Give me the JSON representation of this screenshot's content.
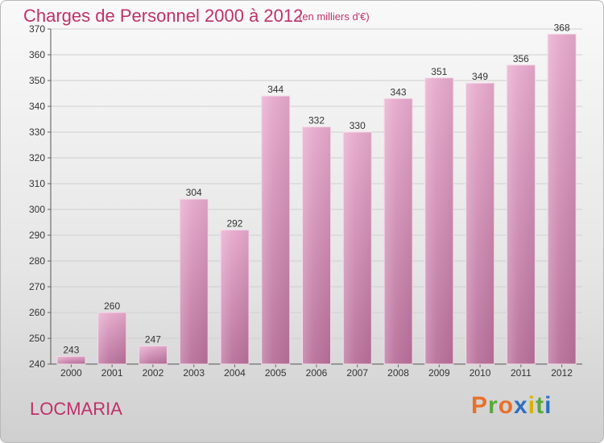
{
  "title": "Charges de Personnel 2000 à 2012",
  "subtitle": "(en milliers d'€)",
  "place": "LOCMARIA",
  "logo": {
    "text": "Proxiti",
    "colors": [
      "#e8702a",
      "#5aa83c",
      "#e8702a",
      "#2d6fc1",
      "#d9b100",
      "#5aa83c",
      "#2d6fc1"
    ]
  },
  "colors": {
    "title": "#c0306a",
    "bar_top": "#e6a9cc",
    "bar_bottom": "#b8709a",
    "grid": "#cfcfcf"
  },
  "chart_data": {
    "type": "bar",
    "title": "Charges de Personnel 2000 à 2012",
    "subtitle": "(en milliers d'€)",
    "categories": [
      "2000",
      "2001",
      "2002",
      "2003",
      "2004",
      "2005",
      "2006",
      "2007",
      "2008",
      "2009",
      "2010",
      "2011",
      "2012"
    ],
    "values": [
      243,
      260,
      247,
      304,
      292,
      344,
      332,
      330,
      343,
      351,
      349,
      356,
      368
    ],
    "ylim": [
      240,
      370
    ],
    "yticks": [
      240,
      250,
      260,
      270,
      280,
      290,
      300,
      310,
      320,
      330,
      340,
      350,
      360,
      370
    ],
    "grid": true,
    "xlabel": "",
    "ylabel": ""
  }
}
